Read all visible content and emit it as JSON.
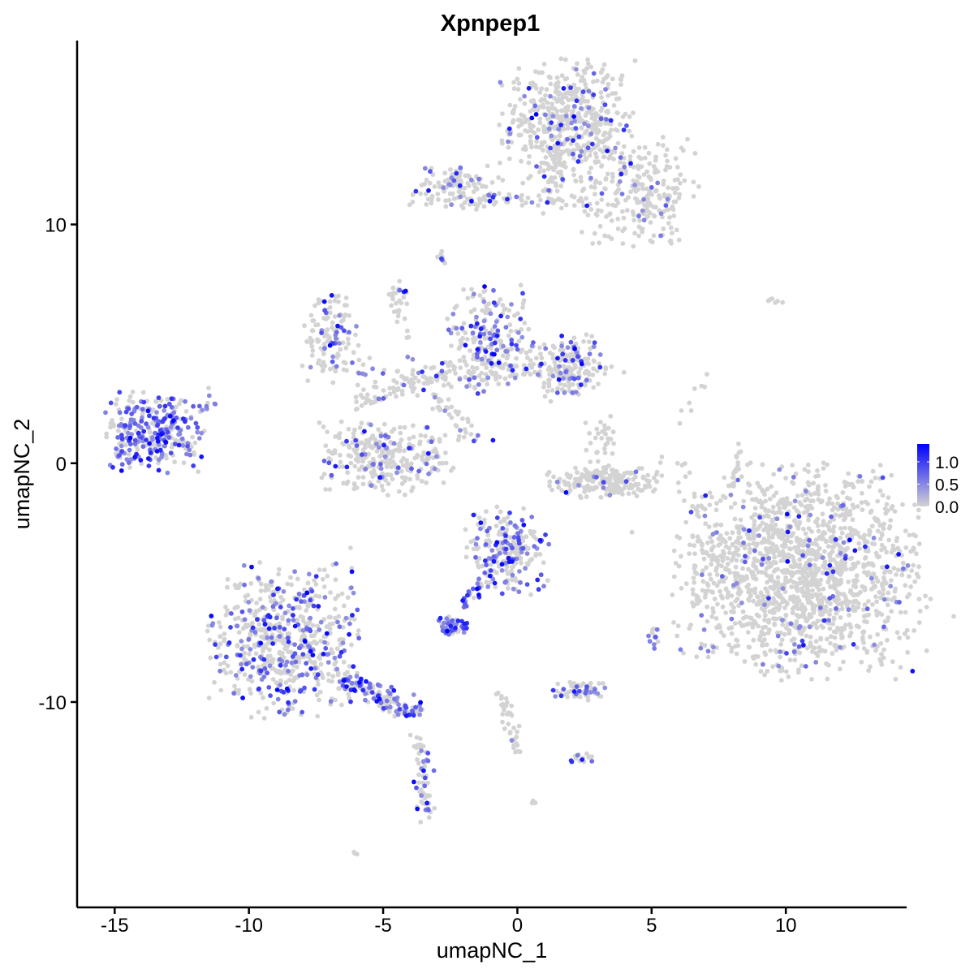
{
  "chart_data": {
    "type": "scatter",
    "title": "Xpnpep1",
    "xlabel": "umapNC_1",
    "ylabel": "umapNC_2",
    "xlim": [
      -16.4,
      14.5
    ],
    "ylim": [
      -18.6,
      17.7
    ],
    "x_ticks": [
      -15,
      -10,
      -5,
      0,
      5,
      10
    ],
    "y_ticks": [
      -10,
      0,
      10
    ],
    "x_tick_labels": [
      "-15",
      "-10",
      "-5",
      "0",
      "5",
      "10"
    ],
    "y_tick_labels": [
      "-10",
      "0",
      "10"
    ],
    "grid": false,
    "legend": {
      "placement": "right",
      "type": "colorbar",
      "range": [
        0,
        1.4
      ],
      "ticks": [
        0,
        0.5,
        1.0
      ],
      "tick_labels": [
        "0.0",
        "0.5",
        "1.0"
      ],
      "low_color": "#D3D3D3",
      "high_color": "#0000FF"
    },
    "clusters": [
      {
        "center": [
          1.9,
          14.2
        ],
        "sd": [
          1.2,
          1.3
        ],
        "n": 520,
        "frac_expr": 0.1
      },
      {
        "center": [
          4.5,
          11.3
        ],
        "sd": [
          1.1,
          1.1
        ],
        "n": 240,
        "frac_expr": 0.08
      },
      {
        "center": [
          -2.3,
          11.6
        ],
        "sd": [
          0.8,
          0.45
        ],
        "n": 120,
        "frac_expr": 0.1
      },
      {
        "center": [
          0.5,
          11.0
        ],
        "sd": [
          1.4,
          0.15
        ],
        "n": 40,
        "frac_expr": 0.1
      },
      {
        "center": [
          1.3,
          12.3
        ],
        "sd": [
          0.25,
          0.9
        ],
        "n": 40,
        "frac_expr": 0.05
      },
      {
        "center": [
          -6.9,
          5.3
        ],
        "sd": [
          0.55,
          0.9
        ],
        "n": 120,
        "frac_expr": 0.2
      },
      {
        "center": [
          -1.0,
          5.2
        ],
        "sd": [
          0.75,
          1.1
        ],
        "n": 200,
        "frac_expr": 0.35
      },
      {
        "center": [
          1.9,
          4.1
        ],
        "sd": [
          0.65,
          0.7
        ],
        "n": 160,
        "frac_expr": 0.25
      },
      {
        "center": [
          -1.5,
          3.8
        ],
        "sd": [
          2.6,
          0.35
        ],
        "n": 150,
        "frac_expr": 0.12
      },
      {
        "center": [
          -5.0,
          0.2
        ],
        "sd": [
          1.2,
          0.7
        ],
        "n": 300,
        "frac_expr": 0.15
      },
      {
        "center": [
          -13.5,
          1.3
        ],
        "sd": [
          0.9,
          0.8
        ],
        "n": 300,
        "frac_expr": 0.6
      },
      {
        "center": [
          3.3,
          -0.8
        ],
        "sd": [
          1.0,
          0.3
        ],
        "n": 200,
        "frac_expr": 0.02
      },
      {
        "center": [
          3.1,
          0.9
        ],
        "sd": [
          0.3,
          0.6
        ],
        "n": 30,
        "frac_expr": 0.1
      },
      {
        "center": [
          10.6,
          -4.5
        ],
        "sd": [
          2.2,
          2.1
        ],
        "n": 1600,
        "frac_expr": 0.06
      },
      {
        "center": [
          -0.4,
          -3.7
        ],
        "sd": [
          0.75,
          0.9
        ],
        "n": 220,
        "frac_expr": 0.4
      },
      {
        "center": [
          -8.7,
          -7.4
        ],
        "sd": [
          1.3,
          1.5
        ],
        "n": 600,
        "frac_expr": 0.3
      },
      {
        "center": [
          -2.4,
          -6.8
        ],
        "sd": [
          0.3,
          0.2
        ],
        "n": 40,
        "frac_expr": 0.8
      },
      {
        "center": [
          2.3,
          -9.5
        ],
        "sd": [
          0.5,
          0.2
        ],
        "n": 60,
        "frac_expr": 0.3
      },
      {
        "center": [
          2.3,
          -12.3
        ],
        "sd": [
          0.25,
          0.15
        ],
        "n": 15,
        "frac_expr": 0.3
      },
      {
        "center": [
          5.1,
          -7.3
        ],
        "sd": [
          0.1,
          0.3
        ],
        "n": 12,
        "frac_expr": 0.5
      },
      {
        "center": [
          -11.6,
          2.6
        ],
        "sd": [
          0.2,
          0.3
        ],
        "n": 10,
        "frac_expr": 0.5
      },
      {
        "center": [
          -4.4,
          7.2
        ],
        "sd": [
          0.2,
          0.3
        ],
        "n": 15,
        "frac_expr": 0.2
      },
      {
        "center": [
          9.5,
          6.8
        ],
        "sd": [
          0.2,
          0.05
        ],
        "n": 6,
        "frac_expr": 0
      },
      {
        "center": [
          -2.8,
          8.6
        ],
        "sd": [
          0.1,
          0.2
        ],
        "n": 8,
        "frac_expr": 0.3
      },
      {
        "center": [
          0.6,
          -14.2
        ],
        "sd": [
          0.05,
          0.05
        ],
        "n": 3,
        "frac_expr": 0
      },
      {
        "center": [
          -6.0,
          -16.3
        ],
        "sd": [
          0.08,
          0.05
        ],
        "n": 3,
        "frac_expr": 0
      }
    ],
    "trails": [
      {
        "from": [
          -6.5,
          -9.0
        ],
        "to": [
          -3.8,
          -10.5
        ],
        "sd": 0.3,
        "n": 150,
        "frac_expr": 0.4
      },
      {
        "from": [
          -3.6,
          -11.5
        ],
        "to": [
          -3.4,
          -15.0
        ],
        "sd": 0.15,
        "n": 60,
        "frac_expr": 0.3
      },
      {
        "from": [
          -0.6,
          -9.5
        ],
        "to": [
          0.0,
          -12.2
        ],
        "sd": 0.12,
        "n": 40,
        "frac_expr": 0.05
      },
      {
        "from": [
          -2.0,
          -6.0
        ],
        "to": [
          -1.2,
          -4.5
        ],
        "sd": 0.1,
        "n": 20,
        "frac_expr": 0.7
      },
      {
        "from": [
          8.0,
          -1.0
        ],
        "to": [
          8.3,
          0.9
        ],
        "sd": 0.07,
        "n": 20,
        "frac_expr": 0
      },
      {
        "from": [
          -4.8,
          7.3
        ],
        "to": [
          -4.0,
          5.0
        ],
        "sd": 0.1,
        "n": 15,
        "frac_expr": 0.1
      },
      {
        "from": [
          -3.3,
          3.0
        ],
        "to": [
          -1.5,
          1.0
        ],
        "sd": 0.25,
        "n": 40,
        "frac_expr": 0.2
      },
      {
        "from": [
          -6.0,
          2.5
        ],
        "to": [
          -3.5,
          3.5
        ],
        "sd": 0.4,
        "n": 50,
        "frac_expr": 0.1
      },
      {
        "from": [
          7.5,
          4.5
        ],
        "to": [
          5.0,
          -0.5
        ],
        "sd": 0.3,
        "n": 10,
        "frac_expr": 0
      }
    ]
  }
}
